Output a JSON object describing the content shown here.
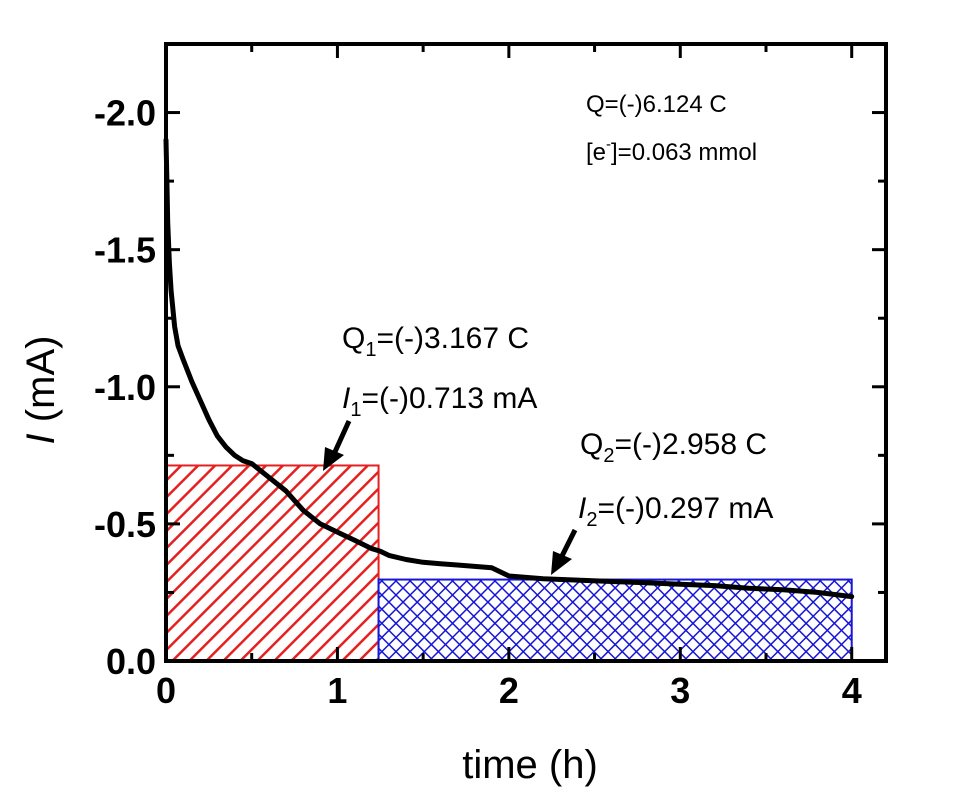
{
  "chart_data": {
    "type": "line",
    "xlabel": "time (h)",
    "ylabel_italic": "I",
    "ylabel_unit": " (mA)",
    "xlim": [
      0,
      4.2
    ],
    "ylim": [
      0.0,
      -2.25
    ],
    "x_ticks": [
      0,
      1,
      2,
      3,
      4
    ],
    "x_tick_labels": [
      "0",
      "1",
      "2",
      "3",
      "4"
    ],
    "y_ticks": [
      0.0,
      -0.5,
      -1.0,
      -1.5,
      -2.0
    ],
    "y_tick_labels": [
      "0.0",
      "-0.5",
      "-1.0",
      "-1.5",
      "-2.0"
    ],
    "series": [
      {
        "x": [
          0.0,
          0.005,
          0.01,
          0.02,
          0.03,
          0.05,
          0.07,
          0.1,
          0.15,
          0.2,
          0.25,
          0.3,
          0.35,
          0.4,
          0.45,
          0.5,
          0.6,
          0.7,
          0.8,
          0.9,
          1.0,
          1.1,
          1.2,
          1.25,
          1.3,
          1.4,
          1.5,
          1.6,
          1.7,
          1.8,
          1.9,
          2.0,
          2.2,
          2.4,
          2.6,
          2.8,
          3.0,
          3.2,
          3.4,
          3.6,
          3.8,
          4.0
        ],
        "y": [
          -1.9,
          -1.75,
          -1.6,
          -1.45,
          -1.35,
          -1.22,
          -1.15,
          -1.1,
          -1.02,
          -0.95,
          -0.88,
          -0.82,
          -0.78,
          -0.75,
          -0.73,
          -0.72,
          -0.67,
          -0.62,
          -0.55,
          -0.5,
          -0.47,
          -0.44,
          -0.41,
          -0.4,
          -0.385,
          -0.37,
          -0.36,
          -0.355,
          -0.35,
          -0.345,
          -0.34,
          -0.31,
          -0.3,
          -0.295,
          -0.29,
          -0.285,
          -0.28,
          -0.275,
          -0.265,
          -0.26,
          -0.25,
          -0.235
        ]
      }
    ],
    "regions": [
      {
        "x0": 0.0,
        "x1": 1.24,
        "y": -0.713,
        "color": "#e52020",
        "pattern": "diagonal-hatch"
      },
      {
        "x0": 1.24,
        "x1": 4.0,
        "y": -0.297,
        "color": "#1616d6",
        "pattern": "cross-hatch"
      }
    ],
    "annotations": {
      "total_q": "Q=(-)6.124 C",
      "electrons_open": "[e",
      "electrons_sup": "-",
      "electrons_rest": "]=0.063 mmol",
      "q1_letter": "Q",
      "q1_sub": "1",
      "q1_rest": "=(-)3.167 C",
      "i1_letter": "I",
      "i1_sub": "1",
      "i1_rest": "=(-)0.713 mA",
      "q2_letter": "Q",
      "q2_sub": "2",
      "q2_rest": "=(-)2.958 C",
      "i2_letter": "I",
      "i2_sub": "2",
      "i2_rest": "=(-)0.297 mA"
    },
    "colors": {
      "curve": "#000000",
      "region1": "#e52020",
      "region2": "#1616d6"
    }
  }
}
